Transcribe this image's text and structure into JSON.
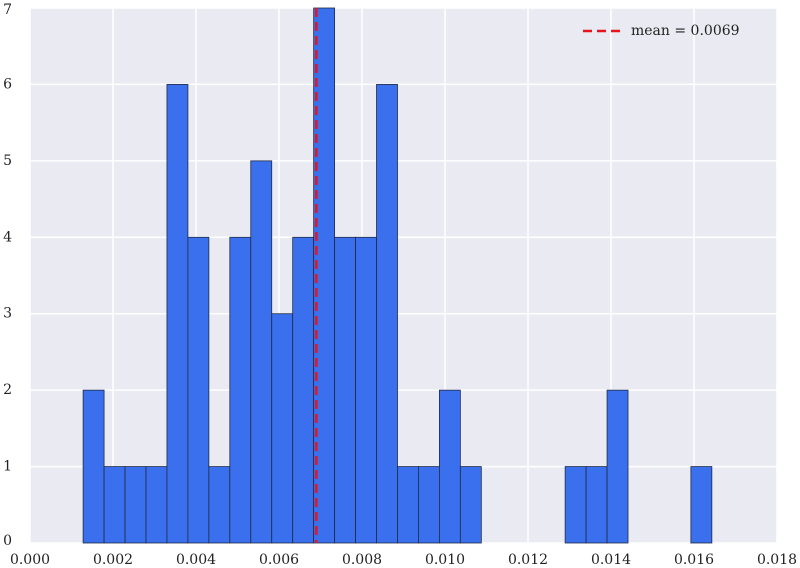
{
  "chart_data": {
    "type": "histogram",
    "bins": [
      0.00128,
      0.001785,
      0.00229,
      0.002795,
      0.0033,
      0.003805,
      0.00431,
      0.004815,
      0.00532,
      0.005825,
      0.00633,
      0.006835,
      0.00734,
      0.007845,
      0.00835,
      0.008855,
      0.00936,
      0.009865,
      0.01037,
      0.010875,
      0.01138,
      0.011885,
      0.01239,
      0.012895,
      0.0134,
      0.013905,
      0.01441,
      0.014915,
      0.01542,
      0.015925,
      0.01643
    ],
    "values": [
      2,
      1,
      1,
      1,
      6,
      4,
      1,
      4,
      5,
      3,
      4,
      7,
      4,
      4,
      6,
      1,
      1,
      2,
      1,
      0,
      0,
      0,
      0,
      1,
      1,
      2,
      0,
      0,
      0,
      1
    ],
    "color": "#3a70ee",
    "mean": {
      "value": 0.0069,
      "label": "mean = 0.0069",
      "color": "#e8141c"
    },
    "xlim": [
      0,
      0.018
    ],
    "xticks": [
      {
        "value": 0,
        "label": "0.000"
      },
      {
        "value": 0.002,
        "label": "0.002"
      },
      {
        "value": 0.004,
        "label": "0.004"
      },
      {
        "value": 0.006,
        "label": "0.006"
      },
      {
        "value": 0.008,
        "label": "0.008"
      },
      {
        "value": 0.01,
        "label": "0.010"
      },
      {
        "value": 0.012,
        "label": "0.012"
      },
      {
        "value": 0.014,
        "label": "0.014"
      },
      {
        "value": 0.016,
        "label": "0.016"
      },
      {
        "value": 0.018,
        "label": "0.018"
      }
    ],
    "ylim": [
      0,
      7
    ],
    "yticks": [
      0,
      1,
      2,
      3,
      4,
      5,
      6,
      7
    ],
    "grid": true,
    "legend": "upper right"
  }
}
